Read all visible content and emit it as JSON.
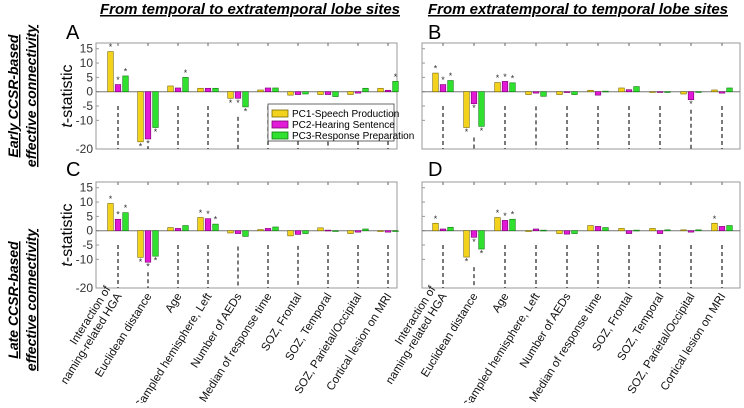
{
  "column_titles": [
    "From temporal to extratemporal lobe sites",
    "From extratemporal to temporal lobe sites"
  ],
  "row_titles": [
    [
      "Early CCSR-based",
      "effective connectivity"
    ],
    [
      "Late CCSR-based",
      "effective connectivity"
    ]
  ],
  "colors": {
    "PC1": "#f2d21b",
    "PC2": "#e21ad8",
    "PC3": "#2fe02f"
  },
  "chart_data": [
    {
      "panel": "A",
      "type": "bar",
      "ylabel": "t-statistic",
      "ylim": [
        -20,
        17
      ],
      "yticks": [
        15,
        10,
        5,
        0,
        -5,
        -10,
        -20
      ],
      "categories": [
        [
          "Interaction of",
          "naming-related HGA"
        ],
        [
          "Euclidean distance"
        ],
        [
          "Age"
        ],
        [
          "Sampled hemisphere, Left"
        ],
        [
          "Number of AEDs"
        ],
        [
          "Median of response time"
        ],
        [
          "SOZ, Frontal"
        ],
        [
          "SOZ, Temporal"
        ],
        [
          "SOZ, Parietal/Occipital"
        ],
        [
          "Cortical lesion on MRI"
        ]
      ],
      "legend": {
        "placement": "center-right",
        "entries": [
          "PC1-Speech Production",
          "PC2-Hearing Sentence",
          "PC3-Response Preparation"
        ]
      },
      "series": [
        {
          "name": "PC1-Speech Production",
          "values": [
            14,
            -17.5,
            2,
            1.2,
            -2.3,
            0.6,
            -1.2,
            -1,
            -1,
            1.2
          ],
          "significant": [
            1,
            1,
            0,
            0,
            1,
            0,
            0,
            0,
            0,
            0
          ]
        },
        {
          "name": "PC2-Hearing Sentence",
          "values": [
            2.5,
            -16.5,
            1.3,
            1.2,
            -2.3,
            1.3,
            -1,
            -1,
            -0.5,
            0.5
          ],
          "significant": [
            1,
            1,
            0,
            0,
            1,
            0,
            0,
            0,
            0,
            0
          ]
        },
        {
          "name": "PC3-Response Preparation",
          "values": [
            5.5,
            -12.5,
            5,
            1.2,
            -5.3,
            1.3,
            -0.8,
            -1.7,
            1.2,
            3.6
          ],
          "significant": [
            1,
            1,
            1,
            0,
            1,
            0,
            0,
            0,
            0,
            1
          ]
        }
      ]
    },
    {
      "panel": "B",
      "type": "bar",
      "ylim": [
        -20,
        17
      ],
      "categories": [
        [
          "Interaction of",
          "naming-related HGA"
        ],
        [
          "Euclidean distance"
        ],
        [
          "Age"
        ],
        [
          "Sampled hemisphere, Left"
        ],
        [
          "Number of AEDs"
        ],
        [
          "Median of response time"
        ],
        [
          "SOZ, Frontal"
        ],
        [
          "SOZ, Temporal"
        ],
        [
          "SOZ, Parietal/Occipital"
        ],
        [
          "Cortical lesion on MRI"
        ]
      ],
      "series": [
        {
          "name": "PC1-Speech Production",
          "values": [
            6.5,
            -12.5,
            3.2,
            -1,
            -1,
            0.5,
            1.3,
            -0.2,
            -0.8,
            0.6
          ],
          "significant": [
            1,
            1,
            1,
            0,
            0,
            0,
            0,
            0,
            0,
            0
          ]
        },
        {
          "name": "PC2-Hearing Sentence",
          "values": [
            2.5,
            -4.2,
            3.6,
            -0.5,
            -0.3,
            -1.2,
            0.7,
            -0.1,
            -2.8,
            -0.5
          ],
          "significant": [
            1,
            1,
            1,
            0,
            0,
            0,
            0,
            0,
            1,
            0
          ]
        },
        {
          "name": "PC3-Response Preparation",
          "values": [
            3.9,
            -12.1,
            3.1,
            -1.6,
            -1,
            0.2,
            1.8,
            0,
            0,
            1.3
          ],
          "significant": [
            1,
            1,
            1,
            0,
            0,
            0,
            0,
            0,
            0,
            0
          ]
        }
      ]
    },
    {
      "panel": "C",
      "type": "bar",
      "ylabel": "t-statistic",
      "ylim": [
        -20,
        17
      ],
      "yticks": [
        15,
        10,
        5,
        0,
        -5,
        -10,
        -20
      ],
      "categories": [
        [
          "Interaction of",
          "naming-related HGA"
        ],
        [
          "Euclidean distance"
        ],
        [
          "Age"
        ],
        [
          "Sampled hemisphere, Left"
        ],
        [
          "Number of AEDs"
        ],
        [
          "Median of response time"
        ],
        [
          "SOZ, Frontal"
        ],
        [
          "SOZ, Temporal"
        ],
        [
          "SOZ, Parietal/Occipital"
        ],
        [
          "Cortical lesion on MRI"
        ]
      ],
      "series": [
        {
          "name": "PC1-Speech Production",
          "values": [
            9.5,
            -9.3,
            1.1,
            4.6,
            -0.8,
            0.4,
            -1.8,
            1,
            -1,
            -0.3
          ],
          "significant": [
            1,
            1,
            0,
            1,
            0,
            0,
            0,
            0,
            0,
            0
          ]
        },
        {
          "name": "PC2-Hearing Sentence",
          "values": [
            4,
            -11,
            0.8,
            4.2,
            -1,
            0.8,
            -1.3,
            0.2,
            -0.5,
            -0.5
          ],
          "significant": [
            1,
            1,
            0,
            1,
            0,
            0,
            0,
            0,
            0,
            0
          ]
        },
        {
          "name": "PC3-Response Preparation",
          "values": [
            6.3,
            -8.9,
            1.8,
            2.3,
            -2,
            1.3,
            -1,
            0,
            0.6,
            -0.3
          ],
          "significant": [
            1,
            1,
            0,
            1,
            0,
            0,
            0,
            0,
            0,
            0
          ]
        }
      ]
    },
    {
      "panel": "D",
      "type": "bar",
      "ylim": [
        -20,
        17
      ],
      "categories": [
        [
          "Interaction of",
          "naming-related HGA"
        ],
        [
          "Euclidean distance"
        ],
        [
          "Age"
        ],
        [
          "Sampled hemisphere, Left"
        ],
        [
          "Number of AEDs"
        ],
        [
          "Median of response time"
        ],
        [
          "SOZ, Frontal"
        ],
        [
          "SOZ, Temporal"
        ],
        [
          "SOZ, Parietal/Occipital"
        ],
        [
          "Cortical lesion on MRI"
        ]
      ],
      "series": [
        {
          "name": "PC1-Speech Production",
          "values": [
            2.6,
            -9.2,
            4.6,
            -0.3,
            -1,
            1.8,
            0.8,
            0.8,
            0.3,
            2.6
          ],
          "significant": [
            1,
            1,
            1,
            0,
            0,
            0,
            0,
            0,
            0,
            1
          ]
        },
        {
          "name": "PC2-Hearing Sentence",
          "values": [
            0.6,
            -2.3,
            3.6,
            0.6,
            -1.2,
            1.5,
            -1,
            -1,
            -0.5,
            1.5
          ],
          "significant": [
            0,
            1,
            1,
            0,
            0,
            0,
            0,
            0,
            0,
            0
          ]
        },
        {
          "name": "PC3-Response Preparation",
          "values": [
            1.2,
            -6.4,
            4,
            0.2,
            -1,
            1.1,
            0.2,
            0.3,
            0.3,
            1.8
          ],
          "significant": [
            0,
            1,
            1,
            0,
            0,
            0,
            0,
            0,
            0,
            0
          ]
        }
      ]
    }
  ]
}
